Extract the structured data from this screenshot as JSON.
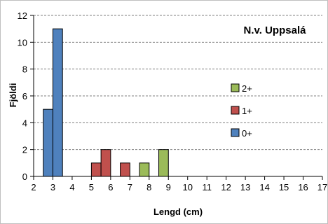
{
  "chart_data": {
    "type": "bar",
    "title": "N.v. Uppsalá",
    "xlabel": "Lengd (cm)",
    "ylabel": "Fjöldi",
    "xlim": [
      2,
      17
    ],
    "ylim": [
      0,
      12
    ],
    "x_ticks": [
      "2",
      "3",
      "4",
      "5",
      "6",
      "7",
      "8",
      "9",
      "10",
      "11",
      "12",
      "13",
      "14",
      "15",
      "16",
      "17"
    ],
    "y_ticks": [
      "0",
      "2",
      "4",
      "6",
      "8",
      "10",
      "12"
    ],
    "grid": true,
    "legend_position": "right",
    "legend_order": [
      "2+",
      "1+",
      "0+"
    ],
    "series": [
      {
        "name": "0+",
        "color": "#4f81bd",
        "bins": [
          {
            "x_start": 2.5,
            "x_end": 3.0,
            "value": 5
          },
          {
            "x_start": 3.0,
            "x_end": 3.5,
            "value": 11
          }
        ]
      },
      {
        "name": "1+",
        "color": "#c0504d",
        "bins": [
          {
            "x_start": 5.0,
            "x_end": 5.5,
            "value": 1
          },
          {
            "x_start": 5.5,
            "x_end": 6.0,
            "value": 2
          },
          {
            "x_start": 6.5,
            "x_end": 7.0,
            "value": 1
          }
        ]
      },
      {
        "name": "2+",
        "color": "#9bbb59",
        "bins": [
          {
            "x_start": 7.5,
            "x_end": 8.0,
            "value": 1
          },
          {
            "x_start": 8.5,
            "x_end": 9.0,
            "value": 2
          }
        ]
      }
    ]
  }
}
